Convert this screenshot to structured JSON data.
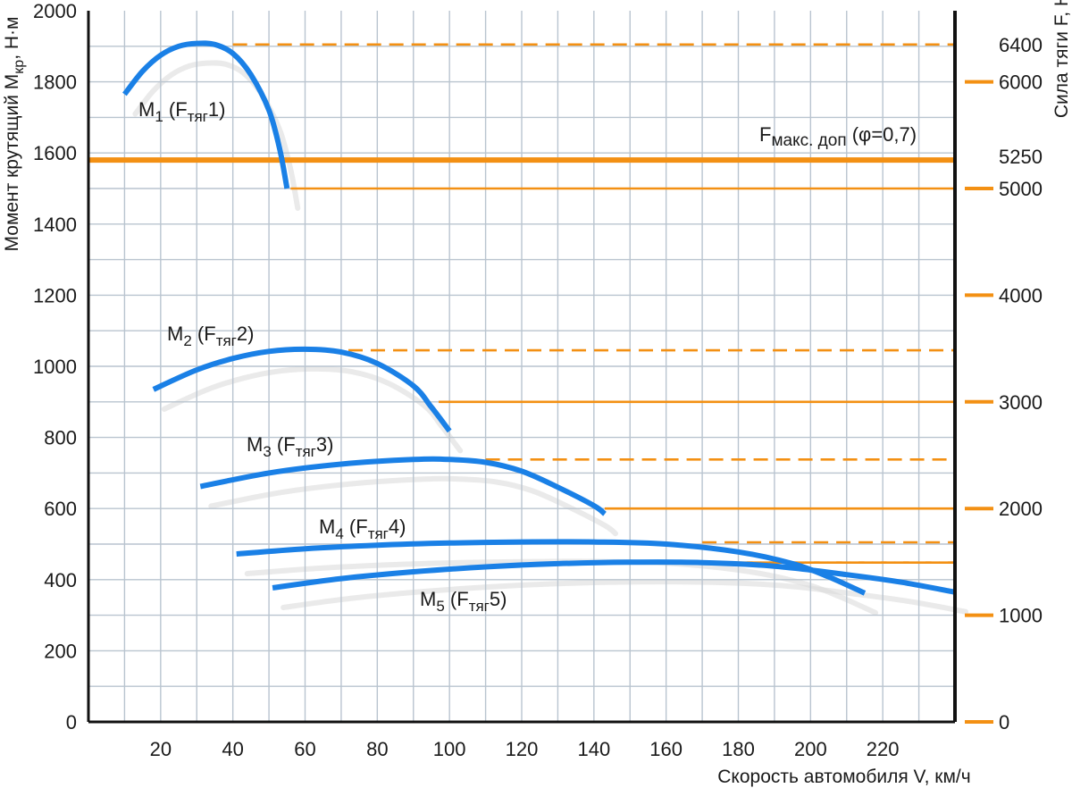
{
  "chart_data": {
    "type": "line",
    "xlabel": "Скорость автомобиля V, км/ч",
    "ylabel_main": "Момент крутящий M",
    "ylabel_sub": "кр",
    "ylabel_tail": ", Н·м",
    "y2label": "Сила тяги F, Н",
    "xlim": [
      0,
      240
    ],
    "ylim": [
      0,
      2000
    ],
    "x_ticks": [
      20,
      40,
      60,
      80,
      100,
      120,
      140,
      160,
      180,
      200,
      220
    ],
    "y_ticks": [
      0,
      200,
      400,
      600,
      800,
      1000,
      1200,
      1400,
      1600,
      1800,
      2000
    ],
    "y2_ticks": [
      {
        "label": "0",
        "torque_equiv": 0
      },
      {
        "label": "1000",
        "torque_equiv": 300
      },
      {
        "label": "2000",
        "torque_equiv": 600
      },
      {
        "label": "3000",
        "torque_equiv": 900
      },
      {
        "label": "4000",
        "torque_equiv": 1200
      },
      {
        "label": "5000",
        "torque_equiv": 1500
      },
      {
        "label": "5250",
        "torque_equiv": 1590
      },
      {
        "label": "6000",
        "torque_equiv": 1800
      },
      {
        "label": "6400",
        "torque_equiv": 1905
      }
    ],
    "y2_major_ticks": [
      "0",
      "1000",
      "2000",
      "3000",
      "4000",
      "5000",
      "6000"
    ],
    "series": [
      {
        "name": "M1 (Fтяг1)",
        "label_main": "M",
        "label_idx": "1",
        "label_open": " (F",
        "label_sub": "тяг",
        "label_close": "1)",
        "x": [
          10,
          15,
          20,
          25,
          30,
          35,
          40,
          45,
          50,
          53,
          55
        ],
        "y": [
          1765,
          1830,
          1875,
          1900,
          1908,
          1905,
          1880,
          1820,
          1720,
          1610,
          1500
        ],
        "peak_level": 1905,
        "peak_x": 40,
        "end_level": 1500,
        "end_x": 56
      },
      {
        "name": "M2 (Fтяг2)",
        "label_main": "M",
        "label_idx": "2",
        "label_open": " (F",
        "label_sub": "тяг",
        "label_close": "2)",
        "x": [
          18,
          30,
          40,
          50,
          60,
          70,
          80,
          90,
          95,
          100
        ],
        "y": [
          935,
          990,
          1022,
          1042,
          1048,
          1040,
          1008,
          945,
          885,
          818
        ],
        "peak_level": 1045,
        "peak_x": 72,
        "end_level": 900,
        "end_x": 97
      },
      {
        "name": "M3 (Fтяг3)",
        "label_main": "M",
        "label_idx": "3",
        "label_open": " (F",
        "label_sub": "тяг",
        "label_close": "3)",
        "x": [
          31,
          50,
          70,
          90,
          100,
          110,
          120,
          130,
          140,
          143
        ],
        "y": [
          662,
          700,
          725,
          738,
          738,
          730,
          705,
          660,
          608,
          585
        ],
        "peak_level": 738,
        "peak_x": 110,
        "end_level": 600,
        "end_x": 143
      },
      {
        "name": "M4 (Fтяг4)",
        "label_main": "M",
        "label_idx": "4",
        "label_open": " (F",
        "label_sub": "тяг",
        "label_close": "4)",
        "x": [
          41,
          60,
          80,
          100,
          120,
          140,
          160,
          180,
          195,
          205,
          215
        ],
        "y": [
          472,
          487,
          497,
          503,
          506,
          506,
          500,
          478,
          445,
          408,
          362
        ],
        "peak_level": 505,
        "peak_x": 170,
        "end_level": null,
        "end_x": null
      },
      {
        "name": "M5 (Fтяг5)",
        "label_main": "M",
        "label_idx": "5",
        "label_open": " (F",
        "label_sub": "тяг",
        "label_close": "5)",
        "x": [
          51,
          70,
          90,
          110,
          130,
          150,
          170,
          190,
          210,
          225,
          240
        ],
        "y": [
          377,
          403,
          422,
          436,
          445,
          449,
          448,
          438,
          414,
          393,
          365
        ],
        "peak_level": 448,
        "peak_x": 170,
        "end_level": null,
        "end_x": null
      }
    ],
    "fmax_line": {
      "level": 1580,
      "label_main": "F",
      "label_sub": "макс. доп",
      "label_tail": " (φ=0,7)"
    },
    "colors": {
      "curve": "#1a80e6",
      "force": "#f39013",
      "grid": "#b9c4cf",
      "axis": "#111111",
      "shadow": "#d8d8d8"
    }
  }
}
